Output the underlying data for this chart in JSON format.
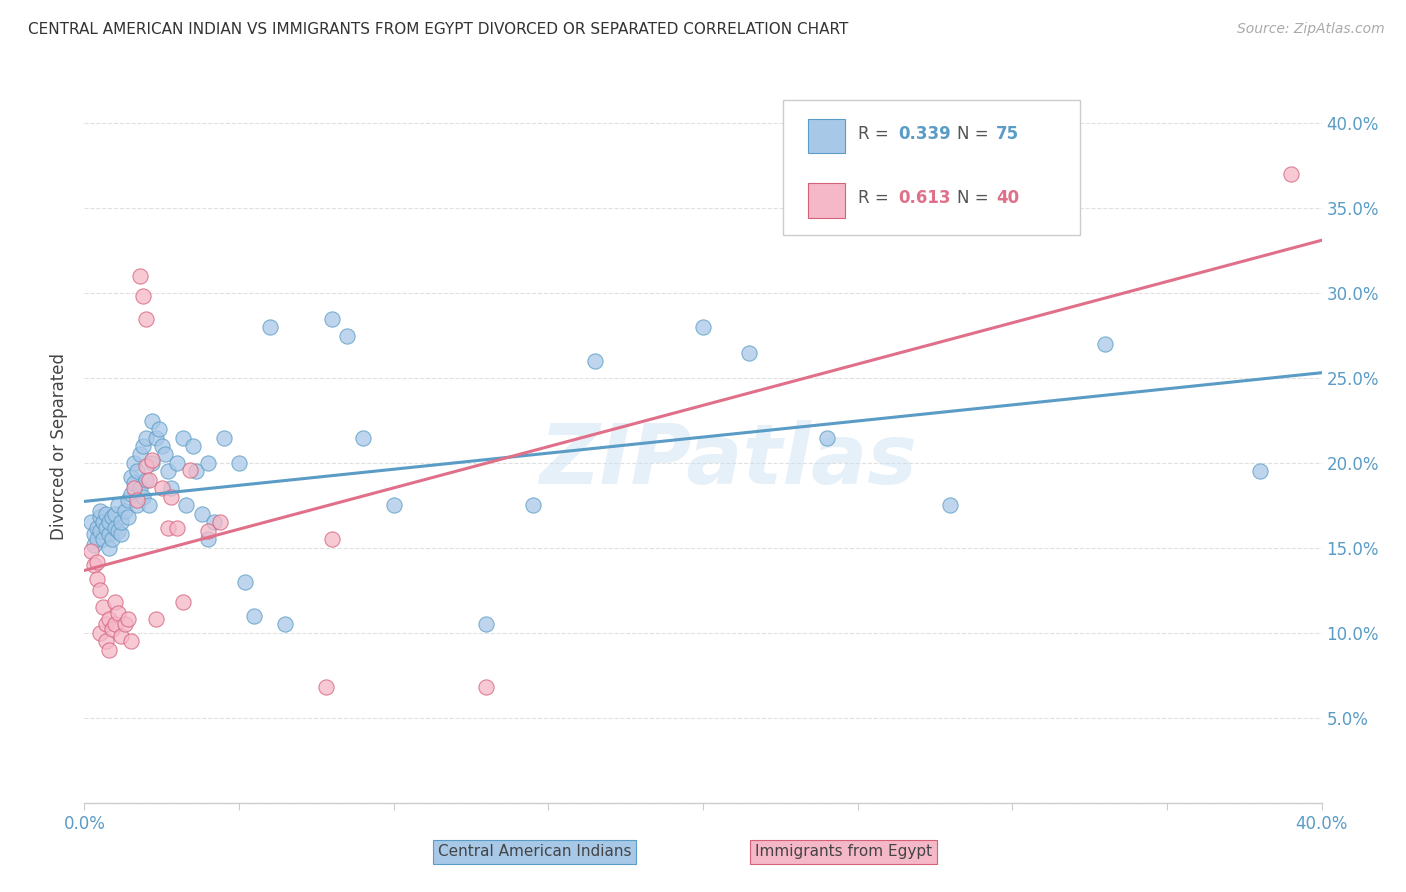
{
  "title": "CENTRAL AMERICAN INDIAN VS IMMIGRANTS FROM EGYPT DIVORCED OR SEPARATED CORRELATION CHART",
  "source": "Source: ZipAtlas.com",
  "ylabel": "Divorced or Separated",
  "xlim": [
    0.0,
    0.4
  ],
  "ylim": [
    0.0,
    0.42
  ],
  "xtick_vals": [
    0.0,
    0.05,
    0.1,
    0.15,
    0.2,
    0.25,
    0.3,
    0.35,
    0.4
  ],
  "ytick_vals": [
    0.0,
    0.05,
    0.1,
    0.15,
    0.2,
    0.25,
    0.3,
    0.35,
    0.4
  ],
  "watermark": "ZIPatlas",
  "blue_fill": "#a8c8e8",
  "blue_edge": "#5a9cc5",
  "pink_fill": "#f5b8c8",
  "pink_edge": "#d4607a",
  "blue_line": "#5a9cc5",
  "pink_line": "#e0708a",
  "R_blue": 0.339,
  "N_blue": 75,
  "R_pink": 0.613,
  "N_pink": 40,
  "blue_scatter": [
    [
      0.002,
      0.165
    ],
    [
      0.003,
      0.158
    ],
    [
      0.003,
      0.152
    ],
    [
      0.004,
      0.162
    ],
    [
      0.004,
      0.155
    ],
    [
      0.005,
      0.168
    ],
    [
      0.005,
      0.16
    ],
    [
      0.005,
      0.172
    ],
    [
      0.006,
      0.165
    ],
    [
      0.006,
      0.155
    ],
    [
      0.007,
      0.17
    ],
    [
      0.007,
      0.162
    ],
    [
      0.008,
      0.158
    ],
    [
      0.008,
      0.15
    ],
    [
      0.008,
      0.165
    ],
    [
      0.009,
      0.168
    ],
    [
      0.009,
      0.155
    ],
    [
      0.01,
      0.162
    ],
    [
      0.01,
      0.17
    ],
    [
      0.011,
      0.16
    ],
    [
      0.011,
      0.175
    ],
    [
      0.012,
      0.158
    ],
    [
      0.012,
      0.165
    ],
    [
      0.013,
      0.172
    ],
    [
      0.014,
      0.168
    ],
    [
      0.014,
      0.178
    ],
    [
      0.015,
      0.192
    ],
    [
      0.015,
      0.182
    ],
    [
      0.016,
      0.2
    ],
    [
      0.016,
      0.188
    ],
    [
      0.017,
      0.195
    ],
    [
      0.017,
      0.175
    ],
    [
      0.018,
      0.185
    ],
    [
      0.018,
      0.205
    ],
    [
      0.019,
      0.21
    ],
    [
      0.019,
      0.18
    ],
    [
      0.02,
      0.215
    ],
    [
      0.02,
      0.19
    ],
    [
      0.021,
      0.175
    ],
    [
      0.022,
      0.225
    ],
    [
      0.022,
      0.2
    ],
    [
      0.023,
      0.215
    ],
    [
      0.024,
      0.22
    ],
    [
      0.025,
      0.21
    ],
    [
      0.026,
      0.205
    ],
    [
      0.027,
      0.195
    ],
    [
      0.028,
      0.185
    ],
    [
      0.03,
      0.2
    ],
    [
      0.032,
      0.215
    ],
    [
      0.033,
      0.175
    ],
    [
      0.035,
      0.21
    ],
    [
      0.036,
      0.195
    ],
    [
      0.038,
      0.17
    ],
    [
      0.04,
      0.2
    ],
    [
      0.04,
      0.155
    ],
    [
      0.042,
      0.165
    ],
    [
      0.045,
      0.215
    ],
    [
      0.05,
      0.2
    ],
    [
      0.052,
      0.13
    ],
    [
      0.055,
      0.11
    ],
    [
      0.06,
      0.28
    ],
    [
      0.065,
      0.105
    ],
    [
      0.08,
      0.285
    ],
    [
      0.085,
      0.275
    ],
    [
      0.09,
      0.215
    ],
    [
      0.1,
      0.175
    ],
    [
      0.13,
      0.105
    ],
    [
      0.145,
      0.175
    ],
    [
      0.165,
      0.26
    ],
    [
      0.2,
      0.28
    ],
    [
      0.215,
      0.265
    ],
    [
      0.24,
      0.215
    ],
    [
      0.28,
      0.175
    ],
    [
      0.33,
      0.27
    ],
    [
      0.38,
      0.195
    ]
  ],
  "pink_scatter": [
    [
      0.002,
      0.148
    ],
    [
      0.003,
      0.14
    ],
    [
      0.004,
      0.132
    ],
    [
      0.004,
      0.142
    ],
    [
      0.005,
      0.125
    ],
    [
      0.005,
      0.1
    ],
    [
      0.006,
      0.115
    ],
    [
      0.007,
      0.105
    ],
    [
      0.007,
      0.095
    ],
    [
      0.008,
      0.09
    ],
    [
      0.008,
      0.108
    ],
    [
      0.009,
      0.102
    ],
    [
      0.01,
      0.118
    ],
    [
      0.01,
      0.105
    ],
    [
      0.011,
      0.112
    ],
    [
      0.012,
      0.098
    ],
    [
      0.013,
      0.105
    ],
    [
      0.014,
      0.108
    ],
    [
      0.015,
      0.095
    ],
    [
      0.016,
      0.185
    ],
    [
      0.017,
      0.178
    ],
    [
      0.018,
      0.31
    ],
    [
      0.019,
      0.298
    ],
    [
      0.02,
      0.285
    ],
    [
      0.02,
      0.198
    ],
    [
      0.021,
      0.19
    ],
    [
      0.022,
      0.202
    ],
    [
      0.023,
      0.108
    ],
    [
      0.025,
      0.185
    ],
    [
      0.027,
      0.162
    ],
    [
      0.028,
      0.18
    ],
    [
      0.03,
      0.162
    ],
    [
      0.032,
      0.118
    ],
    [
      0.034,
      0.196
    ],
    [
      0.04,
      0.16
    ],
    [
      0.044,
      0.165
    ],
    [
      0.08,
      0.155
    ],
    [
      0.078,
      0.068
    ],
    [
      0.13,
      0.068
    ],
    [
      0.39,
      0.37
    ]
  ],
  "bg_color": "#ffffff",
  "grid_color": "#e0e0e0",
  "tick_color": "#5a9cc5",
  "spine_color": "#cccccc",
  "legend_color_blue": "#4472c4",
  "legend_color_pink": "#e05070"
}
